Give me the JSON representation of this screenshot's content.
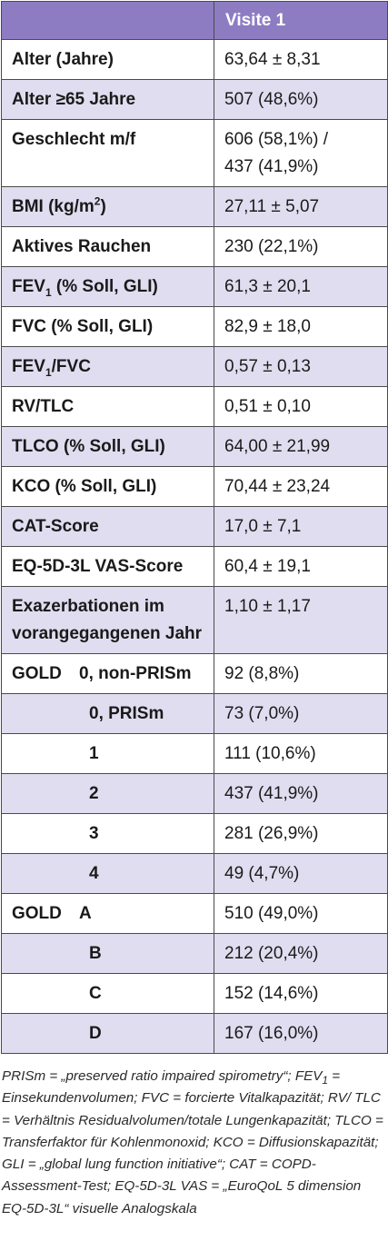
{
  "table": {
    "header": {
      "col1": "",
      "col2": "Visite 1"
    },
    "rows": [
      {
        "label": "Alter (Jahre)",
        "value": "63,64 ± 8,31"
      },
      {
        "label": "Alter ≥65 Jahre",
        "value": "507 (48,6%)"
      },
      {
        "label": "Geschlecht m/f",
        "value_line1": "606 (58,1%) /",
        "value_line2": "437 (41,9%)"
      },
      {
        "label_pre": "BMI (kg/m",
        "label_sup": "2",
        "label_post": ")",
        "value": "27,11 ± 5,07"
      },
      {
        "label": "Aktives Rauchen",
        "value": "230 (22,1%)"
      },
      {
        "label_pre": "FEV",
        "label_sub": "1",
        "label_post": " (% Soll, GLI)",
        "value": "61,3 ± 20,1"
      },
      {
        "label": "FVC (% Soll, GLI)",
        "value": "82,9 ± 18,0"
      },
      {
        "label_pre": "FEV",
        "label_sub": "1",
        "label_post": "/FVC",
        "value": "0,57 ± 0,13"
      },
      {
        "label": "RV/TLC",
        "value": "0,51 ± 0,10"
      },
      {
        "label": "TLCO (% Soll, GLI)",
        "value": "64,00 ± 21,99"
      },
      {
        "label": "KCO (% Soll, GLI)",
        "value": "70,44 ± 23,24"
      },
      {
        "label": "CAT-Score",
        "value": "17,0 ± 7,1"
      },
      {
        "label": "EQ-5D-3L VAS-Score",
        "value": "60,4 ± 19,1"
      },
      {
        "label_line1": "Exazerbationen im",
        "label_line2": "vorangegangenen Jahr",
        "value": "1,10 ± 1,17"
      }
    ],
    "gold_spiro": {
      "key": "GOLD",
      "rows": [
        {
          "label": "0, non-PRISm",
          "value": "92 (8,8%)"
        },
        {
          "label": "0, PRISm",
          "value": "73 (7,0%)"
        },
        {
          "label": "1",
          "value": "111 (10,6%)"
        },
        {
          "label": "2",
          "value": "437 (41,9%)"
        },
        {
          "label": "3",
          "value": "281 (26,9%)"
        },
        {
          "label": "4",
          "value": "49 (4,7%)"
        }
      ]
    },
    "gold_group": {
      "key": "GOLD",
      "rows": [
        {
          "label": "A",
          "value": "510 (49,0%)"
        },
        {
          "label": "B",
          "value": "212 (20,4%)"
        },
        {
          "label": "C",
          "value": "152 (14,6%)"
        },
        {
          "label": "D",
          "value": "167 (16,0%)"
        }
      ]
    }
  },
  "footnote": {
    "p1": "PRISm = „preserved ratio impaired spirometry“; FEV",
    "p1_sub": "1",
    "p2": " = Einsekundenvolumen; FVC = forcierte Vitalkapazität; RV/ TLC = Verhältnis Residualvolumen/totale Lungenkapazität; TLCO = Transferfaktor für Kohlenmonoxid; KCO = Diffusionskapazität; GLI = „global lung function initiative“; CAT = COPD-Assessment-Test; EQ-5D-3L VAS = „EuroQoL 5 dimension EQ-5D-3L“ visuelle Analogskala"
  },
  "colors": {
    "header_bg": "#8e7cc3",
    "shade_bg": "#e1ddf0",
    "border": "#4a4a4a"
  }
}
